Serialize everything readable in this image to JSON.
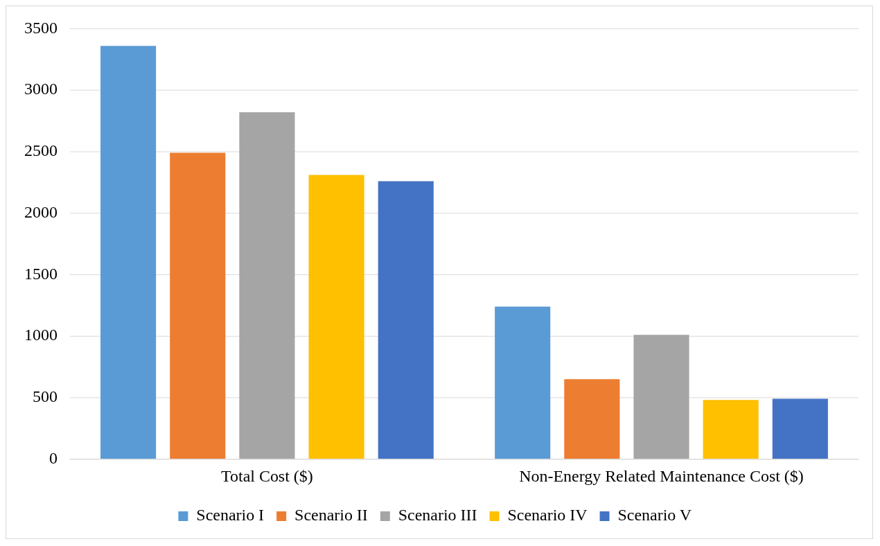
{
  "chart_data": {
    "type": "bar",
    "categories": [
      "Total Cost ($)",
      "Non-Energy Related Maintenance Cost ($)"
    ],
    "series": [
      {
        "name": "Scenario I",
        "color": "#5b9bd5",
        "values": [
          3360,
          1240
        ]
      },
      {
        "name": "Scenario II",
        "color": "#ed7d31",
        "values": [
          2490,
          650
        ]
      },
      {
        "name": "Scenario III",
        "color": "#a5a5a5",
        "values": [
          2820,
          1010
        ]
      },
      {
        "name": "Scenario IV",
        "color": "#ffc000",
        "values": [
          2310,
          480
        ]
      },
      {
        "name": "Scenario V",
        "color": "#4472c4",
        "values": [
          2260,
          490
        ]
      }
    ],
    "ylim": [
      0,
      3500
    ],
    "yticks": [
      0,
      500,
      1000,
      1500,
      2000,
      2500,
      3000,
      3500
    ],
    "grid": "y",
    "legend": "bottom"
  }
}
